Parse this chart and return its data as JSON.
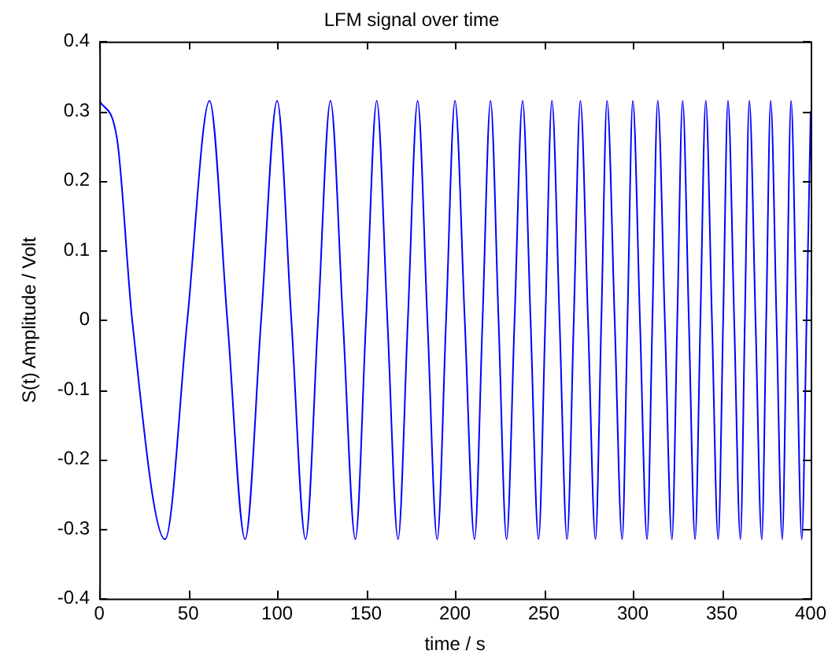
{
  "chart_data": {
    "type": "line",
    "title": "LFM signal over time",
    "xlabel": "time / s",
    "ylabel": "S(t) Amplitude / Volt",
    "xlim": [
      0,
      400
    ],
    "xticks": [
      0,
      50,
      100,
      150,
      200,
      250,
      300,
      350,
      400
    ],
    "ylim": [
      -0.4,
      0.4
    ],
    "yticks": [
      -0.4,
      -0.3,
      -0.2,
      -0.1,
      0,
      0.1,
      0.2,
      0.3,
      0.4
    ],
    "grid": false,
    "legend": false,
    "marker": "none",
    "line_style": "solid",
    "series": [
      {
        "color": "#0000ff",
        "x": [
          0,
          10,
          18.5,
          37,
          49.5,
          62,
          72,
          82,
          91,
          100,
          108,
          116,
          123,
          130,
          137,
          144,
          150,
          156,
          162,
          168,
          173.5,
          179,
          184.5,
          190,
          195,
          200,
          205.5,
          211,
          215.5,
          220,
          224.5,
          229,
          233.5,
          238,
          242.5,
          247,
          250.8,
          254.5,
          258.8,
          263,
          266.8,
          270.5,
          274.8,
          279,
          282.3,
          285.5,
          289.8,
          294,
          297,
          300,
          304,
          308,
          311,
          314,
          318,
          322,
          325,
          328,
          331.5,
          335,
          338,
          341,
          344.5,
          348,
          350.8,
          353.5,
          357,
          360.5,
          363,
          365.5,
          369,
          372.5,
          375,
          377.5,
          380.8,
          384,
          386.5,
          389,
          392,
          395,
          397.7,
          400
        ],
        "values": [
          0.315,
          0.26,
          0,
          -0.315,
          0,
          0.315,
          0,
          -0.315,
          0,
          0.315,
          0,
          -0.315,
          0,
          0.315,
          0,
          -0.315,
          0,
          0.315,
          0,
          -0.315,
          0,
          0.315,
          0,
          -0.315,
          0,
          0.315,
          0,
          -0.315,
          0,
          0.315,
          0,
          -0.315,
          0,
          0.315,
          0,
          -0.315,
          0,
          0.315,
          0,
          -0.315,
          0,
          0.315,
          0,
          -0.315,
          0,
          0.315,
          0,
          -0.315,
          0,
          0.315,
          0,
          -0.315,
          0,
          0.315,
          0,
          -0.315,
          0,
          0.315,
          0,
          -0.315,
          0,
          0.315,
          0,
          -0.315,
          0,
          0.315,
          0,
          -0.315,
          0,
          0.315,
          0,
          -0.315,
          0,
          0.315,
          0,
          -0.315,
          0,
          0.315,
          0,
          -0.315,
          0,
          0.3
        ]
      }
    ]
  }
}
